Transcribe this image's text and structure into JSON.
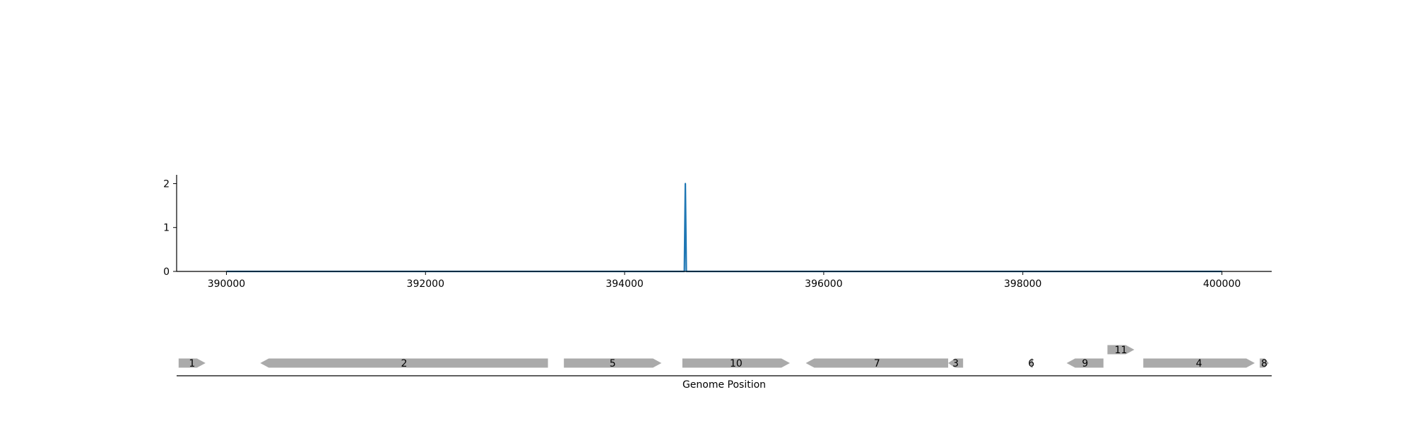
{
  "chart_data": [
    {
      "type": "line",
      "title": "",
      "xlabel": "",
      "ylabel": "",
      "xlim": [
        389500,
        400500
      ],
      "ylim": [
        0,
        2.2
      ],
      "xticks": [
        390000,
        392000,
        394000,
        396000,
        398000,
        400000
      ],
      "yticks": [
        0,
        1,
        2
      ],
      "grid": false,
      "colors": {
        "line": "#1f77b4"
      },
      "series": [
        {
          "x": [
            390000,
            394600,
            394610,
            394620,
            400000
          ],
          "y": [
            0,
            0,
            2,
            0,
            0
          ]
        }
      ]
    },
    {
      "type": "gene-map",
      "xlabel": "Genome Position",
      "xlim": [
        389500,
        400500
      ],
      "colors": {
        "gene": "#aaaaaa",
        "axis": "#000000"
      },
      "genes": [
        {
          "label": "1",
          "start": 389520,
          "end": 389790,
          "strand": "+",
          "row": 0
        },
        {
          "label": "2",
          "start": 390340,
          "end": 393230,
          "strand": "-",
          "row": 0
        },
        {
          "label": "5",
          "start": 393390,
          "end": 394370,
          "strand": "+",
          "row": 0
        },
        {
          "label": "10",
          "start": 394580,
          "end": 395660,
          "strand": "+",
          "row": 0
        },
        {
          "label": "7",
          "start": 395820,
          "end": 397250,
          "strand": "-",
          "row": 0
        },
        {
          "label": "3",
          "start": 397250,
          "end": 397400,
          "strand": "-",
          "row": 0
        },
        {
          "label": "6",
          "start": 398070,
          "end": 398100,
          "strand": "-",
          "row": 0
        },
        {
          "label": "9",
          "start": 398440,
          "end": 398810,
          "strand": "-",
          "row": 0
        },
        {
          "label": "11",
          "start": 398850,
          "end": 399120,
          "strand": "+",
          "row": 1
        },
        {
          "label": "4",
          "start": 399210,
          "end": 400330,
          "strand": "+",
          "row": 0
        },
        {
          "label": "8",
          "start": 400380,
          "end": 400470,
          "strand": "+",
          "row": 0
        }
      ]
    }
  ]
}
